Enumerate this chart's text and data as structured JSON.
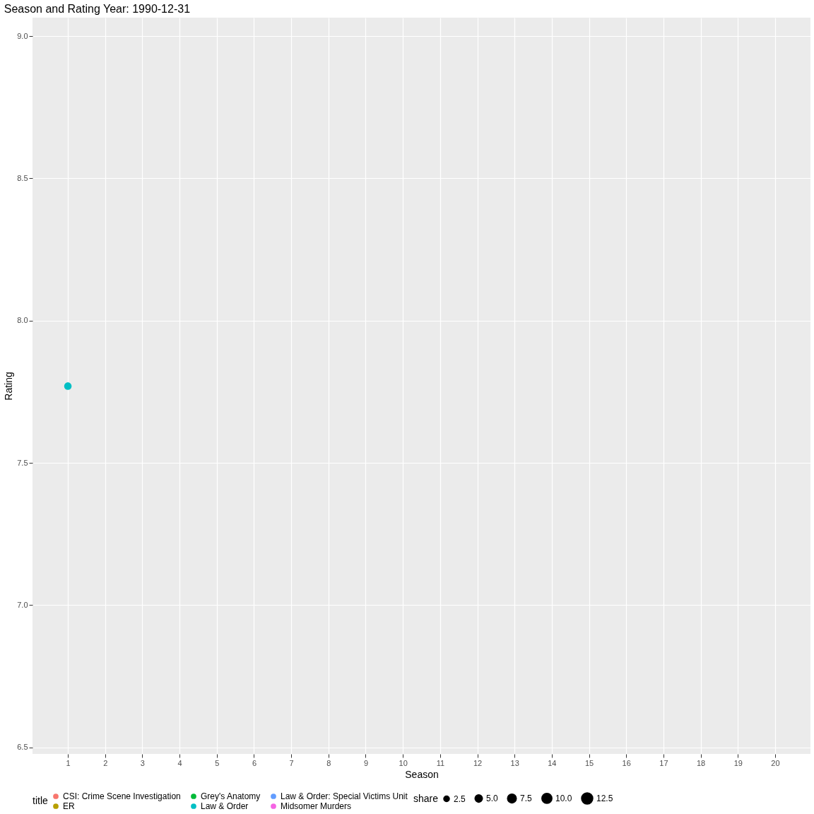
{
  "chart_data": {
    "type": "bubble",
    "title": "Season and Rating Year: 1990-12-31",
    "xlabel": "Season",
    "ylabel": "Rating",
    "legend_title": "title",
    "xlim": [
      0.05,
      20.95
    ],
    "xticks": [
      1,
      2,
      3,
      4,
      5,
      6,
      7,
      8,
      9,
      10,
      11,
      12,
      13,
      14,
      15,
      16,
      17,
      18,
      19,
      20
    ],
    "ylim": [
      6.477,
      9.065
    ],
    "yticks": [
      6.5,
      {
        "value": 7,
        "label": "7.0"
      },
      7.5,
      {
        "value": 8,
        "label": "8.0"
      },
      8.5,
      {
        "value": 9,
        "label": "9.0"
      }
    ],
    "grid": true,
    "legend": "bottom",
    "size_legend": [
      2.5,
      {
        "value": 5,
        "label": "5.0"
      },
      7.5,
      {
        "value": 10,
        "label": "10.0"
      },
      12.5
    ],
    "annotations": [
      "share"
    ],
    "series": [
      {
        "name": "CSI: Crime Scene Investigation",
        "color": "#f8766d"
      },
      {
        "name": "ER",
        "color": "#b79f00"
      },
      {
        "name": "Grey's Anatomy",
        "color": "#00ba38"
      },
      {
        "name": "Law & Order",
        "color": "#00bfc4",
        "x": [
          1
        ],
        "values": [
          7.77
        ],
        "sizes": [
          5.0
        ]
      },
      {
        "name": "Law & Order: Special Victims Unit",
        "color": "#619cff"
      },
      {
        "name": "Midsomer Murders",
        "color": "#f564e3"
      }
    ]
  }
}
